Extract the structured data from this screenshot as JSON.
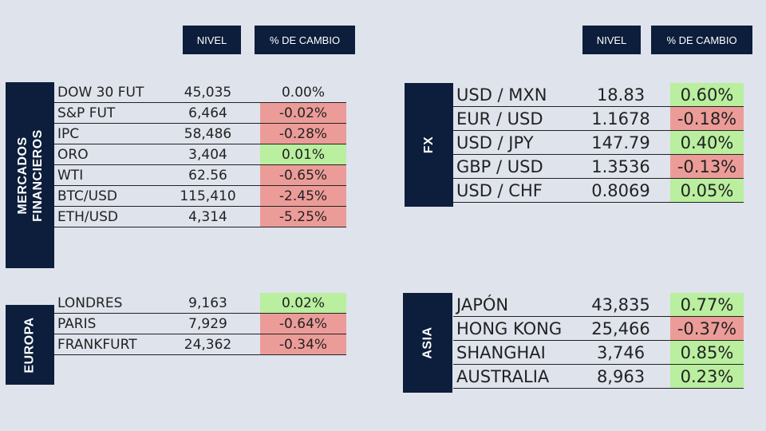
{
  "headers": {
    "left": {
      "level": "NIVEL",
      "change": "% DE CAMBIO"
    },
    "right": {
      "level": "NIVEL",
      "change": "% DE CAMBIO"
    }
  },
  "sections": {
    "mercados": {
      "label_line1": "MERCADOS",
      "label_line2": "FINANCIEROS",
      "rows": [
        {
          "name": "DOW 30 FUT",
          "level": "45,035",
          "change": "0.00%",
          "dir": "neu"
        },
        {
          "name": "S&P FUT",
          "level": "6,464",
          "change": "-0.02%",
          "dir": "neg"
        },
        {
          "name": "IPC",
          "level": "58,486",
          "change": "-0.28%",
          "dir": "neg"
        },
        {
          "name": "ORO",
          "level": "3,404",
          "change": "0.01%",
          "dir": "pos"
        },
        {
          "name": "WTI",
          "level": "62.56",
          "change": "-0.65%",
          "dir": "neg"
        },
        {
          "name": "BTC/USD",
          "level": "115,410",
          "change": "-2.45%",
          "dir": "neg"
        },
        {
          "name": "ETH/USD",
          "level": "4,314",
          "change": "-5.25%",
          "dir": "neg"
        }
      ]
    },
    "europa": {
      "label": "EUROPA",
      "rows": [
        {
          "name": "LONDRES",
          "level": "9,163",
          "change": "0.02%",
          "dir": "pos"
        },
        {
          "name": "PARIS",
          "level": "7,929",
          "change": "-0.64%",
          "dir": "neg"
        },
        {
          "name": "FRANKFURT",
          "level": "24,362",
          "change": "-0.34%",
          "dir": "neg"
        }
      ]
    },
    "fx": {
      "label": "FX",
      "rows": [
        {
          "name": "USD / MXN",
          "level": "18.83",
          "change": "0.60%",
          "dir": "pos"
        },
        {
          "name": "EUR / USD",
          "level": "1.1678",
          "change": "-0.18%",
          "dir": "neg"
        },
        {
          "name": "USD / JPY",
          "level": "147.79",
          "change": "0.40%",
          "dir": "pos"
        },
        {
          "name": "GBP / USD",
          "level": "1.3536",
          "change": "-0.13%",
          "dir": "neg"
        },
        {
          "name": "USD / CHF",
          "level": "0.8069",
          "change": "0.05%",
          "dir": "pos"
        }
      ]
    },
    "asia": {
      "label": "ASIA",
      "rows": [
        {
          "name": "JAPÓN",
          "level": "43,835",
          "change": "0.77%",
          "dir": "pos"
        },
        {
          "name": "HONG KONG",
          "level": "25,466",
          "change": "-0.37%",
          "dir": "neg"
        },
        {
          "name": "SHANGHAI",
          "level": "3,746",
          "change": "0.85%",
          "dir": "pos"
        },
        {
          "name": "AUSTRALIA",
          "level": "8,963",
          "change": "0.23%",
          "dir": "pos"
        }
      ]
    }
  },
  "colors": {
    "navy": "#0c1e3c",
    "positive": "#b9ef9f",
    "negative": "#ec9c98",
    "background": "#dfe3ec"
  }
}
